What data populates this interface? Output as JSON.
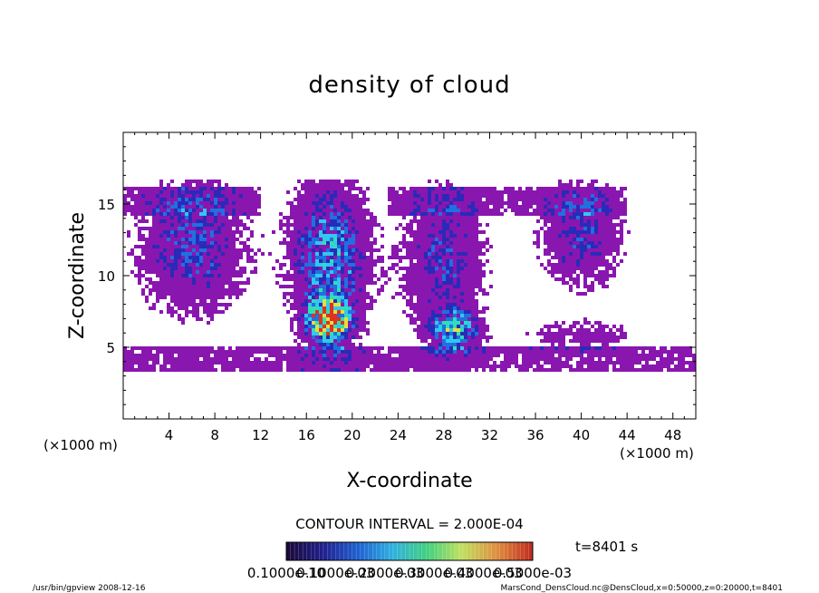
{
  "chart_data": {
    "type": "heatmap",
    "title": "density of cloud",
    "xlabel": "X-coordinate",
    "ylabel": "Z-coordinate",
    "x_unit_left": "(×1000 m)",
    "x_unit_right": "(×1000 m)",
    "xlim": [
      0,
      50
    ],
    "ylim": [
      0,
      20
    ],
    "x_ticks": [
      4,
      8,
      12,
      16,
      20,
      24,
      28,
      32,
      36,
      40,
      44,
      48
    ],
    "y_ticks": [
      5,
      10,
      15
    ],
    "contour_interval_label": "CONTOUR INTERVAL = 2.000E-04",
    "time_label": "t=8401 s",
    "colorbar": {
      "tick_labels": [
        "0.1000e-10",
        "0.1000e-03",
        "0.2000e-03",
        "0.3000e-03",
        "0.4000e-03",
        "0.5000e-03"
      ],
      "colors": [
        "#1a0a3a",
        "#20208c",
        "#1f5fd0",
        "#30b0e0",
        "#40d080",
        "#c0e060",
        "#e09040",
        "#c03020"
      ]
    },
    "levels_colors": [
      "#8a16b0",
      "#2a2ab8",
      "#2070e0",
      "#30c8f0",
      "#30e0b0",
      "#e0e040",
      "#e03020"
    ],
    "clusters": [
      {
        "x": 6,
        "z": 12,
        "sx": 4.5,
        "sz": 4.5,
        "peak": 2.2
      },
      {
        "x": 18,
        "z": 11,
        "sx": 3.2,
        "sz": 5.5,
        "peak": 3.0
      },
      {
        "x": 18,
        "z": 6.8,
        "sx": 1.6,
        "sz": 1.2,
        "peak": 4.8
      },
      {
        "x": 28,
        "z": 11,
        "sx": 3.5,
        "sz": 5.0,
        "peak": 2.0
      },
      {
        "x": 29,
        "z": 6.2,
        "sx": 2.0,
        "sz": 1.3,
        "peak": 2.8
      },
      {
        "x": 40,
        "z": 12.8,
        "sx": 3.5,
        "sz": 3.5,
        "peak": 2.0
      },
      {
        "x": 40,
        "z": 5.8,
        "sx": 5.0,
        "sz": 1.0,
        "peak": 1.3
      }
    ]
  },
  "footer": {
    "left": "/usr/bin/gpview   2008-12-16",
    "right": "MarsCond_DensCloud.nc@DensCloud,x=0:50000,z=0:20000,t=8401"
  }
}
